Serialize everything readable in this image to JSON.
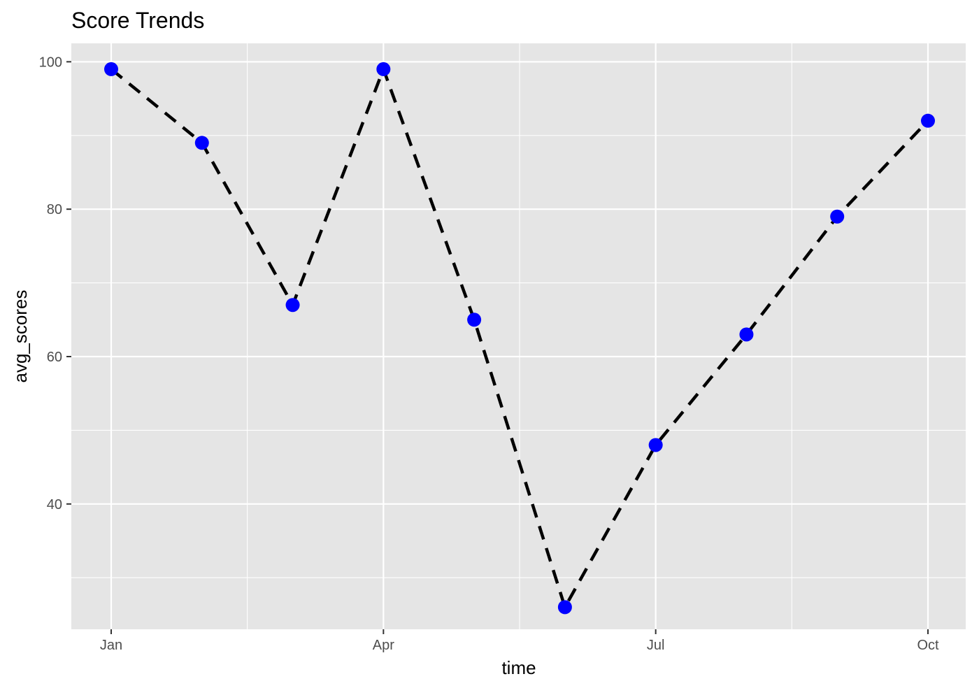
{
  "chart_data": {
    "type": "line",
    "title": "Score Trends",
    "xlabel": "time",
    "ylabel": "avg_scores",
    "x": [
      "Jan",
      "Feb",
      "Mar",
      "Apr",
      "May",
      "Jun",
      "Jul",
      "Aug",
      "Sep",
      "Oct"
    ],
    "x_ticks": [
      "Jan",
      "Apr",
      "Jul",
      "Oct"
    ],
    "y_ticks": [
      40,
      60,
      80,
      100
    ],
    "ylim": [
      23,
      102.5
    ],
    "series": [
      {
        "values": [
          99,
          89,
          67,
          99,
          65,
          26,
          48,
          63,
          79,
          92
        ]
      }
    ],
    "line_style": "dashed",
    "line_color": "#000000",
    "point_color": "#0000ff",
    "panel_background": "#e5e5e5",
    "grid": true,
    "legend": "none"
  }
}
